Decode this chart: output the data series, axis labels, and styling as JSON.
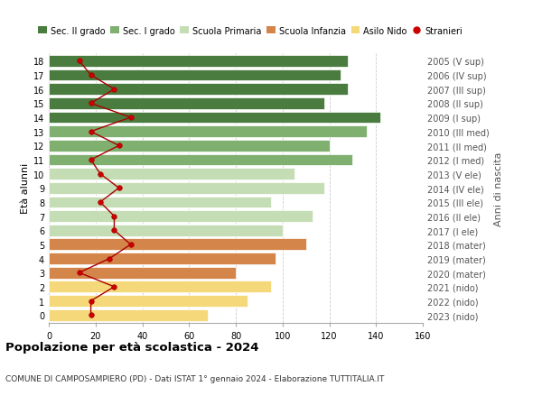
{
  "ages": [
    18,
    17,
    16,
    15,
    14,
    13,
    12,
    11,
    10,
    9,
    8,
    7,
    6,
    5,
    4,
    3,
    2,
    1,
    0
  ],
  "bar_values": [
    128,
    125,
    128,
    118,
    142,
    136,
    120,
    130,
    105,
    118,
    95,
    113,
    100,
    110,
    97,
    80,
    95,
    85,
    68
  ],
  "bar_colors": [
    "#4a7c3f",
    "#4a7c3f",
    "#4a7c3f",
    "#4a7c3f",
    "#4a7c3f",
    "#7fb070",
    "#7fb070",
    "#7fb070",
    "#c5ddb4",
    "#c5ddb4",
    "#c5ddb4",
    "#c5ddb4",
    "#c5ddb4",
    "#d4854a",
    "#d4854a",
    "#d4854a",
    "#f5d87a",
    "#f5d87a",
    "#f5d87a"
  ],
  "stranieri": [
    13,
    18,
    28,
    18,
    35,
    18,
    30,
    18,
    22,
    30,
    22,
    28,
    28,
    35,
    26,
    13,
    28,
    18,
    18
  ],
  "right_labels": [
    "2005 (V sup)",
    "2006 (IV sup)",
    "2007 (III sup)",
    "2008 (II sup)",
    "2009 (I sup)",
    "2010 (III med)",
    "2011 (II med)",
    "2012 (I med)",
    "2013 (V ele)",
    "2014 (IV ele)",
    "2015 (III ele)",
    "2016 (II ele)",
    "2017 (I ele)",
    "2018 (mater)",
    "2019 (mater)",
    "2020 (mater)",
    "2021 (nido)",
    "2022 (nido)",
    "2023 (nido)"
  ],
  "legend_labels": [
    "Sec. II grado",
    "Sec. I grado",
    "Scuola Primaria",
    "Scuola Infanzia",
    "Asilo Nido",
    "Stranieri"
  ],
  "legend_colors": [
    "#4a7c3f",
    "#7fb070",
    "#c5ddb4",
    "#d4854a",
    "#f5d87a",
    "#cc0000"
  ],
  "ylabel": "Età alunni",
  "ylabel_right": "Anni di nascita",
  "title": "Popolazione per età scolastica - 2024",
  "subtitle": "COMUNE DI CAMPOSAMPIERO (PD) - Dati ISTAT 1° gennaio 2024 - Elaborazione TUTTITALIA.IT",
  "xlim": [
    0,
    160
  ],
  "xticks": [
    0,
    20,
    40,
    60,
    80,
    100,
    120,
    140,
    160
  ],
  "background_color": "#ffffff",
  "grid_color": "#cccccc",
  "bar_height": 0.82
}
